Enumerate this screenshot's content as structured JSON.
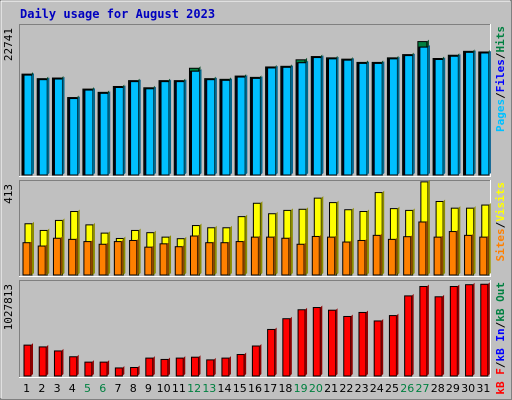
{
  "title": "Daily usage for August 2023",
  "colors": {
    "hits": "#008040",
    "files": "#0000ff",
    "pages": "#00c0ff",
    "visits": "#ffff00",
    "sites": "#ff8000",
    "kbin": "#0000ff",
    "kbout": "#008040",
    "kbf": "#ff0000",
    "sep": "#000000",
    "weekend": "#008040",
    "weekday": "#000000"
  },
  "chart_data": [
    {
      "type": "bar",
      "panel": "hits-files-pages",
      "title": "Daily usage for August 2023",
      "y_max_label": "22741",
      "y_mid_label": "",
      "legend": [
        {
          "label": "Pages",
          "color_key": "pages"
        },
        {
          "label": "/",
          "color_key": "sep"
        },
        {
          "label": "Files",
          "color_key": "files"
        },
        {
          "label": "/",
          "color_key": "sep"
        },
        {
          "label": "Hits",
          "color_key": "hits"
        }
      ],
      "legend_placement": "right",
      "ylim": [
        0,
        22741
      ],
      "categories": [
        "1",
        "2",
        "3",
        "4",
        "5",
        "6",
        "7",
        "8",
        "9",
        "10",
        "11",
        "12",
        "13",
        "14",
        "15",
        "16",
        "17",
        "18",
        "19",
        "20",
        "21",
        "22",
        "23",
        "24",
        "25",
        "26",
        "27",
        "28",
        "29",
        "30",
        "31"
      ],
      "series": [
        {
          "name": "Hits",
          "color_key": "hits",
          "values": [
            15500,
            14800,
            14900,
            11900,
            13200,
            12700,
            13600,
            14500,
            13400,
            14500,
            14500,
            16400,
            14800,
            14700,
            15200,
            15000,
            16600,
            16700,
            17700,
            18200,
            18000,
            17800,
            17300,
            17300,
            18000,
            18500,
            20500,
            17900,
            18400,
            19000,
            18900
          ]
        },
        {
          "name": "Files",
          "color_key": "files",
          "values": [
            15500,
            14800,
            14900,
            11900,
            13200,
            12700,
            13600,
            14500,
            13400,
            14500,
            14500,
            16100,
            14800,
            14700,
            15200,
            15000,
            16600,
            16700,
            17400,
            18200,
            18000,
            17800,
            17300,
            17300,
            18000,
            18500,
            19800,
            17900,
            18400,
            19000,
            18900
          ]
        },
        {
          "name": "Pages",
          "color_key": "pages",
          "values": [
            15500,
            14800,
            14900,
            11900,
            13200,
            12700,
            13600,
            14500,
            13400,
            14500,
            14500,
            16100,
            14800,
            14700,
            15200,
            15000,
            16600,
            16700,
            17400,
            18200,
            18000,
            17800,
            17300,
            17300,
            18000,
            18500,
            19800,
            17900,
            18400,
            19000,
            18900
          ]
        }
      ]
    },
    {
      "type": "bar",
      "panel": "visits-sites",
      "y_max_label": "413",
      "y_mid_label": "",
      "legend": [
        {
          "label": "Sites",
          "color_key": "sites"
        },
        {
          "label": "/",
          "color_key": "sep"
        },
        {
          "label": "Visits",
          "color_key": "visits"
        }
      ],
      "legend_placement": "right",
      "ylim": [
        0,
        413
      ],
      "categories": [
        "1",
        "2",
        "3",
        "4",
        "5",
        "6",
        "7",
        "8",
        "9",
        "10",
        "11",
        "12",
        "13",
        "14",
        "15",
        "16",
        "17",
        "18",
        "19",
        "20",
        "21",
        "22",
        "23",
        "24",
        "25",
        "26",
        "27",
        "28",
        "29",
        "30",
        "31"
      ],
      "series": [
        {
          "name": "Visits",
          "color_key": "visits",
          "values": [
            230,
            200,
            245,
            285,
            225,
            188,
            164,
            200,
            190,
            170,
            163,
            222,
            212,
            212,
            262,
            322,
            275,
            290,
            295,
            345,
            325,
            293,
            285,
            370,
            298,
            290,
            418,
            330,
            300,
            300,
            314
          ]
        },
        {
          "name": "Sites",
          "color_key": "sites",
          "values": [
            145,
            130,
            165,
            160,
            150,
            138,
            150,
            155,
            125,
            140,
            127,
            175,
            145,
            145,
            150,
            170,
            170,
            165,
            138,
            173,
            170,
            148,
            155,
            178,
            160,
            172,
            238,
            170,
            195,
            178,
            170
          ]
        }
      ]
    },
    {
      "type": "bar",
      "panel": "kbf-in-out",
      "y_max_label": "1027813",
      "y_mid_label": "",
      "legend": [
        {
          "label": "kB F",
          "color_key": "kbf"
        },
        {
          "label": "/",
          "color_key": "sep"
        },
        {
          "label": "kB In",
          "color_key": "kbin"
        },
        {
          "label": "/",
          "color_key": "sep"
        },
        {
          "label": "kB Out",
          "color_key": "kbout"
        }
      ],
      "legend_placement": "right",
      "ylim": [
        0,
        1027813
      ],
      "categories": [
        "1",
        "2",
        "3",
        "4",
        "5",
        "6",
        "7",
        "8",
        "9",
        "10",
        "11",
        "12",
        "13",
        "14",
        "15",
        "16",
        "17",
        "18",
        "19",
        "20",
        "21",
        "22",
        "23",
        "24",
        "25",
        "26",
        "27",
        "28",
        "29",
        "30",
        "31"
      ],
      "series": [
        {
          "name": "kB F",
          "color_key": "kbf",
          "values": [
            345000,
            325000,
            280000,
            215000,
            155000,
            155000,
            90000,
            95000,
            200000,
            185000,
            200000,
            210000,
            180000,
            200000,
            240000,
            335000,
            520000,
            640000,
            740000,
            765000,
            735000,
            665000,
            710000,
            615000,
            675000,
            895000,
            1000000,
            885000,
            1000000,
            1020000,
            1025000
          ]
        }
      ]
    }
  ],
  "x_axis": {
    "labels": [
      "1",
      "2",
      "3",
      "4",
      "5",
      "6",
      "7",
      "8",
      "9",
      "10",
      "11",
      "12",
      "13",
      "14",
      "15",
      "16",
      "17",
      "18",
      "19",
      "20",
      "21",
      "22",
      "23",
      "24",
      "25",
      "26",
      "27",
      "28",
      "29",
      "30",
      "31"
    ],
    "weekend": [
      false,
      false,
      false,
      false,
      true,
      true,
      false,
      false,
      false,
      false,
      false,
      true,
      true,
      false,
      false,
      false,
      false,
      false,
      true,
      true,
      false,
      false,
      false,
      false,
      false,
      true,
      true,
      false,
      false,
      false,
      false
    ]
  }
}
